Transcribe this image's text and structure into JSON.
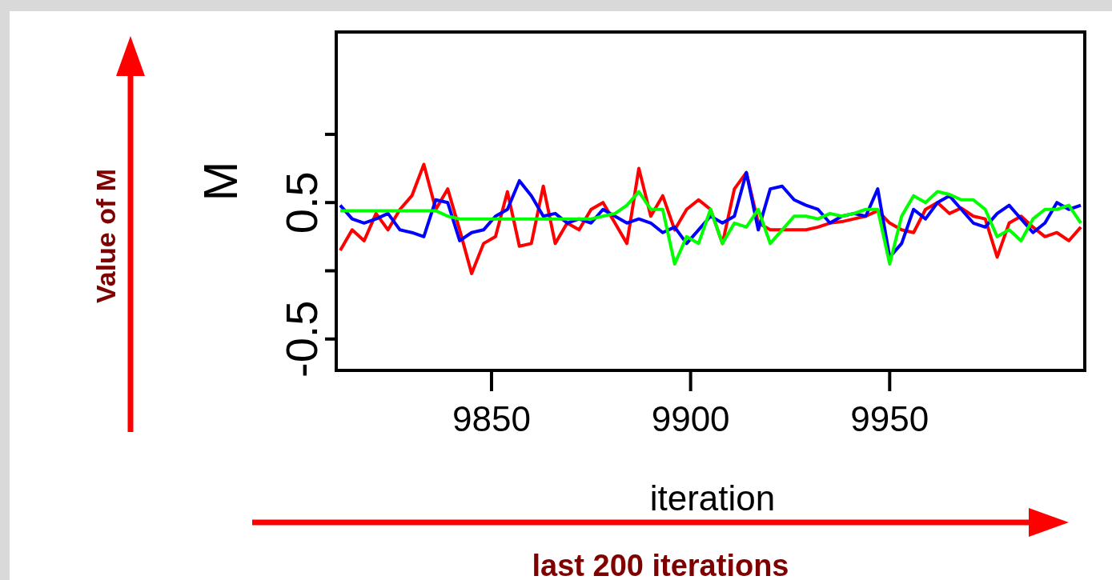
{
  "chart_data": {
    "type": "line",
    "xlabel": "iteration",
    "ylabel": "M",
    "x": [
      9812,
      9815,
      9818,
      9821,
      9824,
      9827,
      9830,
      9833,
      9836,
      9839,
      9842,
      9845,
      9848,
      9851,
      9854,
      9857,
      9860,
      9863,
      9866,
      9869,
      9872,
      9875,
      9878,
      9881,
      9884,
      9887,
      9890,
      9893,
      9896,
      9899,
      9902,
      9905,
      9908,
      9911,
      9914,
      9917,
      9920,
      9923,
      9926,
      9929,
      9932,
      9935,
      9938,
      9941,
      9944,
      9947,
      9950,
      9953,
      9956,
      9959,
      9962,
      9965,
      9968,
      9971,
      9974,
      9977,
      9980,
      9983,
      9986,
      9989,
      9992,
      9995,
      9998
    ],
    "series": [
      {
        "color": "#ff0000",
        "values": [
          0.15,
          0.3,
          0.22,
          0.42,
          0.3,
          0.45,
          0.55,
          0.78,
          0.45,
          0.6,
          0.3,
          -0.02,
          0.2,
          0.25,
          0.58,
          0.18,
          0.2,
          0.62,
          0.2,
          0.35,
          0.3,
          0.45,
          0.5,
          0.35,
          0.2,
          0.75,
          0.4,
          0.55,
          0.3,
          0.45,
          0.52,
          0.45,
          0.2,
          0.6,
          0.72,
          0.35,
          0.3,
          0.3,
          0.3,
          0.3,
          0.32,
          0.35,
          0.36,
          0.38,
          0.4,
          0.44,
          0.35,
          0.3,
          0.28,
          0.45,
          0.5,
          0.42,
          0.46,
          0.4,
          0.38,
          0.1,
          0.35,
          0.4,
          0.32,
          0.25,
          0.28,
          0.22,
          0.32
        ]
      },
      {
        "color": "#0000ff",
        "values": [
          0.48,
          0.38,
          0.35,
          0.38,
          0.42,
          0.3,
          0.28,
          0.25,
          0.52,
          0.5,
          0.22,
          0.28,
          0.3,
          0.4,
          0.45,
          0.66,
          0.55,
          0.4,
          0.42,
          0.35,
          0.38,
          0.35,
          0.45,
          0.4,
          0.35,
          0.38,
          0.35,
          0.28,
          0.32,
          0.2,
          0.3,
          0.4,
          0.35,
          0.4,
          0.72,
          0.3,
          0.6,
          0.62,
          0.52,
          0.48,
          0.45,
          0.35,
          0.4,
          0.42,
          0.4,
          0.6,
          0.1,
          0.2,
          0.45,
          0.38,
          0.5,
          0.55,
          0.45,
          0.35,
          0.32,
          0.42,
          0.48,
          0.38,
          0.28,
          0.35,
          0.5,
          0.45,
          0.48
        ]
      },
      {
        "color": "#00ff00",
        "values": [
          0.44,
          0.44,
          0.44,
          0.44,
          0.44,
          0.44,
          0.44,
          0.44,
          0.44,
          0.4,
          0.38,
          0.38,
          0.38,
          0.38,
          0.38,
          0.38,
          0.38,
          0.38,
          0.38,
          0.38,
          0.38,
          0.38,
          0.4,
          0.42,
          0.48,
          0.58,
          0.45,
          0.45,
          0.05,
          0.25,
          0.2,
          0.45,
          0.2,
          0.35,
          0.32,
          0.45,
          0.2,
          0.3,
          0.4,
          0.4,
          0.38,
          0.42,
          0.4,
          0.42,
          0.45,
          0.45,
          0.05,
          0.4,
          0.55,
          0.5,
          0.58,
          0.56,
          0.52,
          0.52,
          0.45,
          0.25,
          0.3,
          0.22,
          0.38,
          0.45,
          0.45,
          0.48,
          0.35
        ]
      }
    ],
    "xlim": [
      9811,
      9999
    ],
    "xticks": [
      9850,
      9900,
      9950
    ],
    "ylim": [
      -0.73,
      1.75
    ],
    "yticks": [
      -0.5,
      {
        "value": 0,
        "label": null
      },
      0.5,
      {
        "value": 1,
        "label": null
      }
    ],
    "grid": false,
    "annotations": [
      "Value of M",
      "last 200 iterations"
    ]
  }
}
